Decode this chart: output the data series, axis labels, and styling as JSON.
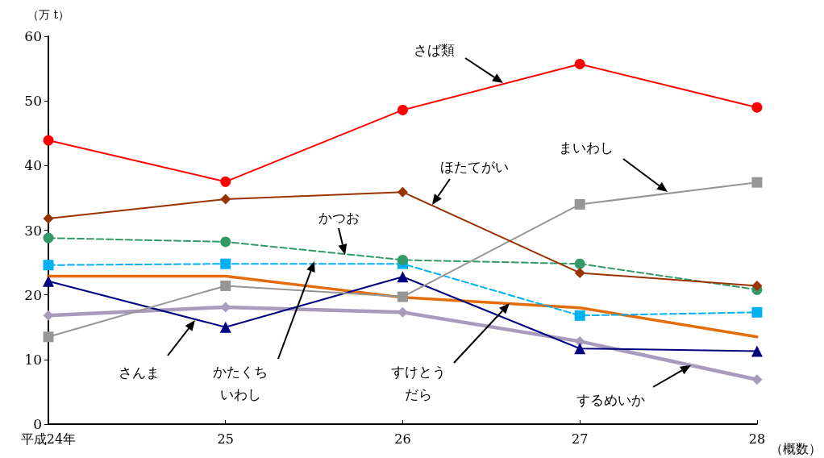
{
  "chart_data": {
    "type": "line",
    "ylabel": "（万 t）",
    "xlabel": "（概数）",
    "categories": [
      "平成24年",
      "25",
      "26",
      "27",
      "28"
    ],
    "ylim": [
      0,
      60
    ],
    "yticks": [
      0,
      10,
      20,
      30,
      40,
      50,
      60
    ],
    "grid": false,
    "series": [
      {
        "color": "#ff0000",
        "marker": "circle",
        "line_style": "solid",
        "values": [
          43.9,
          37.5,
          48.6,
          55.7,
          49.0
        ]
      },
      {
        "color": "#993300",
        "marker": "diamond",
        "line_style": "solid",
        "values": [
          31.8,
          34.8,
          35.9,
          23.4,
          21.4
        ]
      },
      {
        "color": "#969696",
        "marker": "square",
        "line_style": "solid",
        "values": [
          13.5,
          21.4,
          19.7,
          34.0,
          37.4
        ]
      },
      {
        "color": "#339966",
        "marker": "circle",
        "line_style": "dashed",
        "values": [
          28.8,
          28.2,
          25.4,
          24.8,
          20.8
        ]
      },
      {
        "color": "#00b0f0",
        "marker": "square",
        "line_style": "dashed",
        "values": [
          24.6,
          24.8,
          24.8,
          16.8,
          17.3
        ]
      },
      {
        "color": "#000080",
        "marker": "triangle",
        "line_style": "solid",
        "values": [
          22.1,
          15.0,
          22.8,
          11.7,
          11.3
        ]
      },
      {
        "color": "#e46c0a",
        "marker": "none",
        "line_style": "solid",
        "values": [
          22.9,
          22.9,
          19.6,
          18.0,
          13.5
        ]
      },
      {
        "color": "#a99bbd",
        "marker": "diamond",
        "line_style": "solid",
        "values": [
          16.8,
          18.1,
          17.3,
          12.8,
          6.9
        ]
      }
    ],
    "annotations": [
      "さば類",
      "ほたてがい",
      "まいわし",
      "かつお",
      "さんま",
      "かたくちいわし",
      "すけとうだら",
      "するめいか"
    ]
  }
}
